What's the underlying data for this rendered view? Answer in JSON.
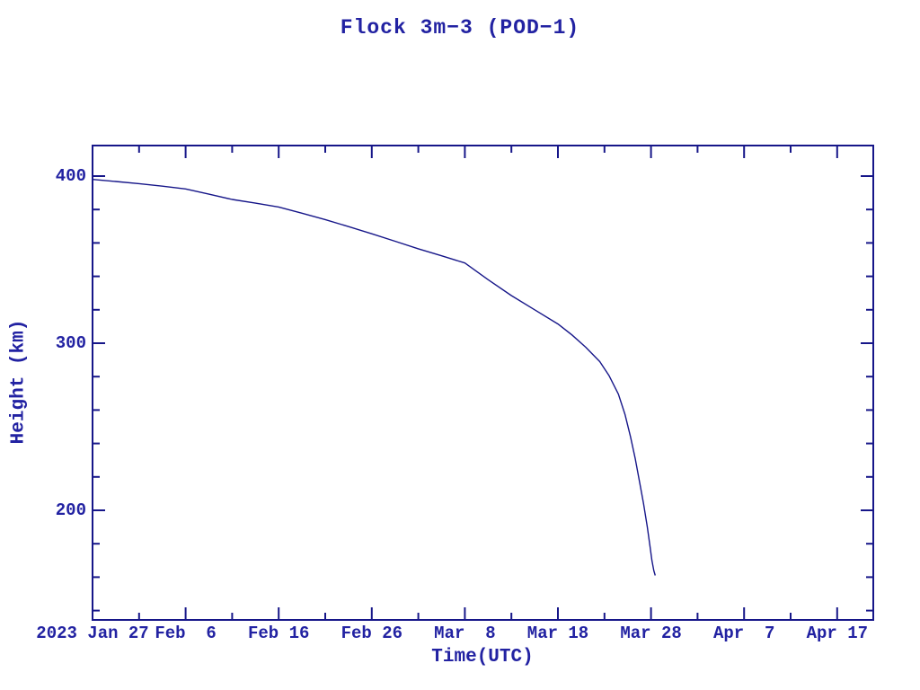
{
  "title": "Flock 3m−3 (POD−1)",
  "axes": {
    "x_label": "Time(UTC)",
    "y_label": "Height (km)"
  },
  "colors": {
    "line": "#161689",
    "frame": "#161689",
    "text": "#2222a2",
    "background": "#ffffff"
  },
  "x_axis": {
    "major_ticks": [
      {
        "day": 0,
        "label": "2023 Jan 27"
      },
      {
        "day": 10,
        "label": "Feb  6"
      },
      {
        "day": 20,
        "label": "Feb 16"
      },
      {
        "day": 30,
        "label": "Feb 26"
      },
      {
        "day": 40,
        "label": "Mar  8"
      },
      {
        "day": 50,
        "label": "Mar 18"
      },
      {
        "day": 60,
        "label": "Mar 28"
      },
      {
        "day": 70,
        "label": "Apr  7"
      },
      {
        "day": 80,
        "label": "Apr 17"
      }
    ],
    "minor_tick_days": [
      5,
      15,
      25,
      35,
      45,
      55,
      65,
      75
    ]
  },
  "y_axis": {
    "major_ticks": [
      {
        "km": 400,
        "label": "400"
      },
      {
        "km": 300,
        "label": "300"
      },
      {
        "km": 200,
        "label": "200"
      }
    ],
    "minor_tick_km": [
      380,
      360,
      340,
      320,
      280,
      260,
      240,
      220,
      180,
      160,
      140
    ]
  },
  "chart_data": {
    "type": "line",
    "title": "Flock 3m−3 (POD−1)",
    "xlabel": "Time(UTC)",
    "ylabel": "Height (km)",
    "x_unit": "days since 2023 Jan 27",
    "x_tick_labels": [
      "2023 Jan 27",
      "Feb  6",
      "Feb 16",
      "Feb 26",
      "Mar  8",
      "Mar 18",
      "Mar 28",
      "Apr  7",
      "Apr 17"
    ],
    "xlim_days": [
      0,
      84
    ],
    "ylim": [
      134,
      418
    ],
    "grid": false,
    "legend": "none",
    "series": [
      {
        "name": "Flock 3m-3 (POD-1) orbital height",
        "points_day_km": [
          [
            0,
            398
          ],
          [
            2.5,
            396.8
          ],
          [
            5,
            395.5
          ],
          [
            7.5,
            394
          ],
          [
            10,
            392.3
          ],
          [
            12.5,
            389.2
          ],
          [
            15,
            386
          ],
          [
            17.5,
            383.8
          ],
          [
            20,
            381.5
          ],
          [
            22.5,
            377.8
          ],
          [
            25,
            374
          ],
          [
            27.5,
            369.8
          ],
          [
            30,
            365.5
          ],
          [
            32.5,
            361
          ],
          [
            35,
            356.5
          ],
          [
            37.5,
            352.3
          ],
          [
            40,
            348
          ],
          [
            42.5,
            338
          ],
          [
            45,
            328.5
          ],
          [
            47.5,
            320
          ],
          [
            50,
            311.5
          ],
          [
            51.5,
            305
          ],
          [
            53,
            297.5
          ],
          [
            54.5,
            289
          ],
          [
            55.5,
            280.5
          ],
          [
            56.5,
            269.5
          ],
          [
            57.2,
            257.5
          ],
          [
            57.8,
            244
          ],
          [
            58.3,
            231
          ],
          [
            58.8,
            216
          ],
          [
            59.2,
            204
          ],
          [
            59.6,
            190
          ],
          [
            59.9,
            178
          ],
          [
            60.1,
            170
          ],
          [
            60.3,
            164
          ],
          [
            60.45,
            161
          ]
        ]
      }
    ]
  }
}
